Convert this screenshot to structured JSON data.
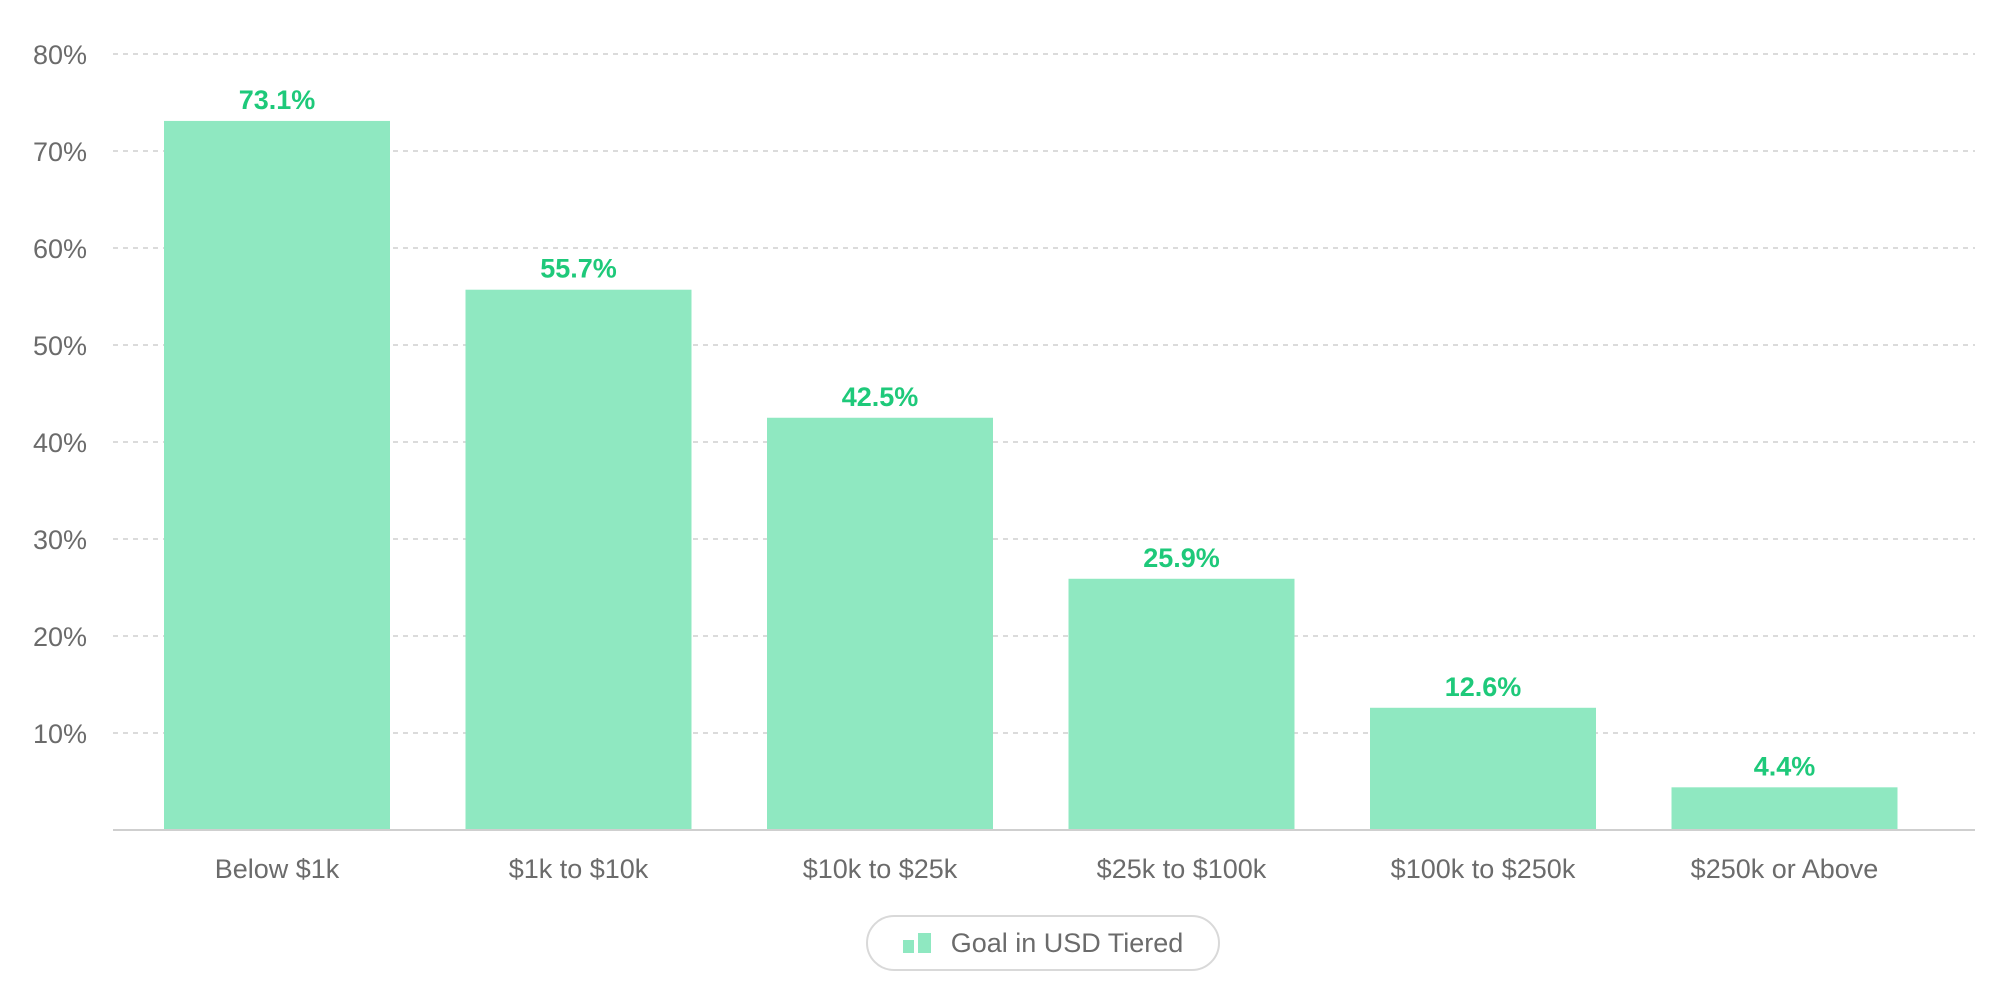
{
  "colors": {
    "bar": "#8fe8c1",
    "data_label": "#1ec97a",
    "grid": "#cfcfcf",
    "axis_text": "#6b6b6b"
  },
  "legend": {
    "label": "Goal in USD Tiered",
    "icon": "bar-chart-icon"
  },
  "chart_data": {
    "type": "bar",
    "categories": [
      "Below $1k",
      "$1k to $10k",
      "$10k to $25k",
      "$25k to $100k",
      "$100k to $250k",
      "$250k or Above"
    ],
    "series": [
      {
        "name": "Goal in USD Tiered",
        "values": [
          73.1,
          55.7,
          42.5,
          25.9,
          12.6,
          4.4
        ],
        "labels": [
          "73.1%",
          "55.7%",
          "42.5%",
          "25.9%",
          "12.6%",
          "4.4%"
        ]
      }
    ],
    "yticks": [
      10,
      20,
      30,
      40,
      50,
      60,
      70,
      80
    ],
    "ytick_labels": [
      "10%",
      "20%",
      "30%",
      "40%",
      "50%",
      "60%",
      "70%",
      "80%"
    ],
    "ylim": [
      0,
      80
    ],
    "grid": true,
    "legend_position": "bottom-center"
  }
}
